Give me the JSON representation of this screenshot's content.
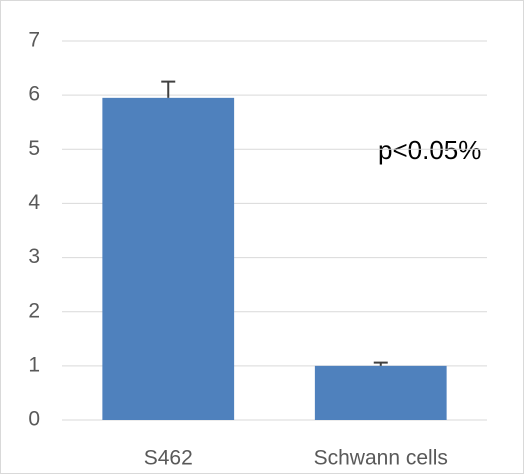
{
  "chart_data": {
    "type": "bar",
    "categories": [
      "S462",
      "Schwann cells"
    ],
    "values": [
      5.95,
      1.0
    ],
    "errors": [
      0.3,
      0.06
    ],
    "color": "#4f81bd",
    "ylim": [
      0,
      7
    ],
    "yticks": [
      0,
      1,
      2,
      3,
      4,
      5,
      6,
      7
    ],
    "grid": true,
    "annotation": "p<0.05%"
  }
}
